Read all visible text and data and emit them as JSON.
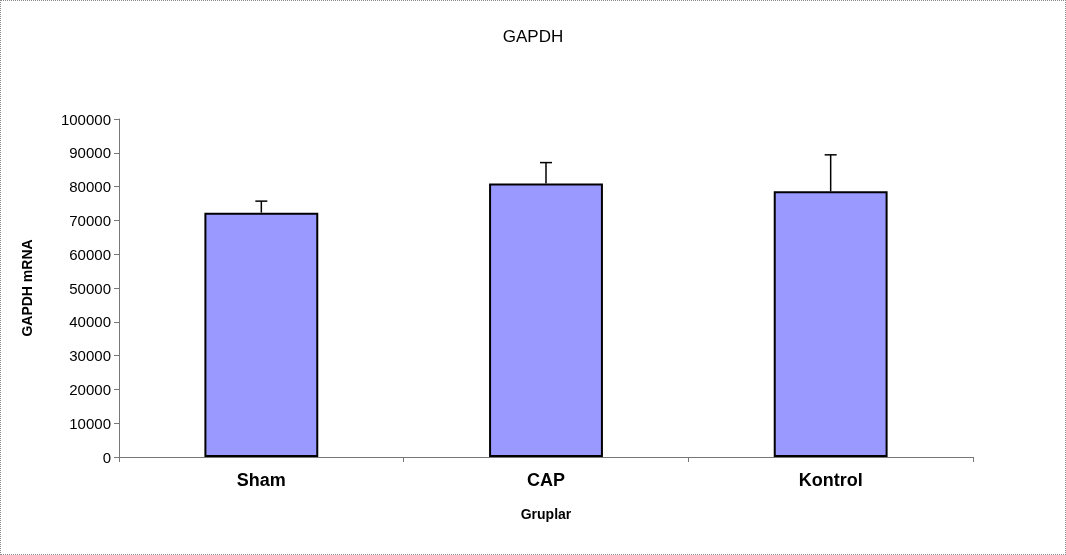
{
  "chart_data": {
    "type": "bar",
    "title": "GAPDH",
    "xlabel": "Gruplar",
    "ylabel": "GAPDH mRNA",
    "categories": [
      "Sham",
      "CAP",
      "Kontrol"
    ],
    "values": [
      72300,
      80900,
      78600
    ],
    "errors": [
      [
        72300,
        75700
      ],
      [
        80900,
        87100
      ],
      [
        78600,
        89400
      ]
    ],
    "color": "#9999ff",
    "ylim": [
      0,
      100000
    ],
    "yticks": [
      0,
      10000,
      20000,
      30000,
      40000,
      50000,
      60000,
      70000,
      80000,
      90000,
      100000
    ],
    "grid": false
  }
}
